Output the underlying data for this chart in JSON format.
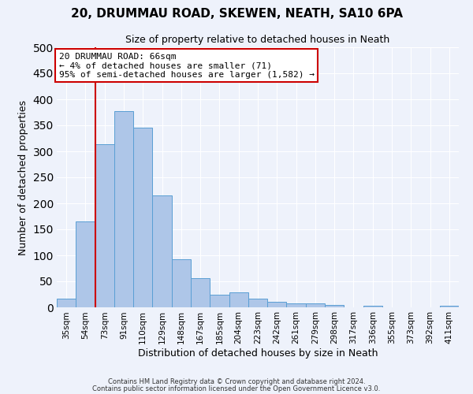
{
  "title": "20, DRUMMAU ROAD, SKEWEN, NEATH, SA10 6PA",
  "subtitle": "Size of property relative to detached houses in Neath",
  "xlabel": "Distribution of detached houses by size in Neath",
  "ylabel": "Number of detached properties",
  "categories": [
    "35sqm",
    "54sqm",
    "73sqm",
    "91sqm",
    "110sqm",
    "129sqm",
    "148sqm",
    "167sqm",
    "185sqm",
    "204sqm",
    "223sqm",
    "242sqm",
    "261sqm",
    "279sqm",
    "298sqm",
    "317sqm",
    "336sqm",
    "355sqm",
    "373sqm",
    "392sqm",
    "411sqm"
  ],
  "values": [
    17,
    165,
    313,
    378,
    346,
    215,
    93,
    56,
    25,
    29,
    16,
    11,
    8,
    8,
    5,
    0,
    3,
    0,
    0,
    0,
    3
  ],
  "bar_color": "#aec6e8",
  "bar_edge_color": "#5a9fd4",
  "ylim": [
    0,
    500
  ],
  "yticks": [
    0,
    50,
    100,
    150,
    200,
    250,
    300,
    350,
    400,
    450,
    500
  ],
  "vline_x": 1.5,
  "vline_color": "#cc0000",
  "annotation_title": "20 DRUMMAU ROAD: 66sqm",
  "annotation_line1": "← 4% of detached houses are smaller (71)",
  "annotation_line2": "95% of semi-detached houses are larger (1,582) →",
  "annotation_box_color": "#ffffff",
  "annotation_box_edge": "#cc0000",
  "bg_color": "#eef2fb",
  "grid_color": "#ffffff",
  "footer1": "Contains HM Land Registry data © Crown copyright and database right 2024.",
  "footer2": "Contains public sector information licensed under the Open Government Licence v3.0."
}
